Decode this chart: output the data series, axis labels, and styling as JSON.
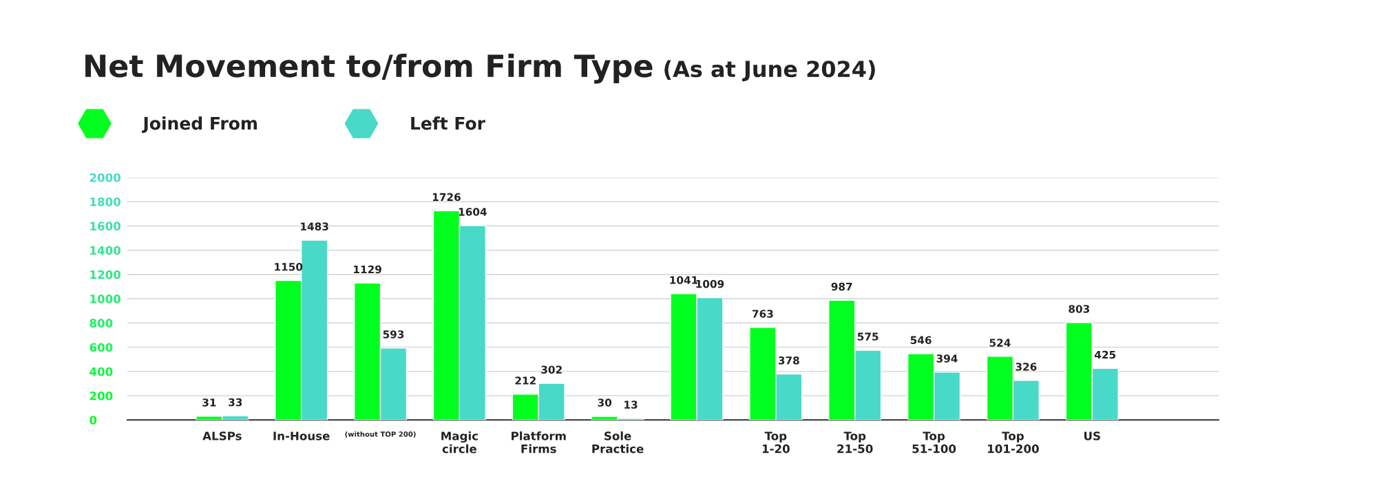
{
  "chart_data": {
    "type": "bar",
    "title": "Net Movement to/from Firm Type",
    "subtitle": "(As at June 2024)",
    "categories": [
      "ALSPs",
      "In-House",
      "(without TOP 200)",
      "Magic\ncircle",
      "Platform\nFirms",
      "Sole\nPractice",
      null,
      "Top\n1-20",
      "Top\n21-50",
      "Top\n51-100",
      "Top\n101-200",
      "US"
    ],
    "series": [
      {
        "name": "Joined From",
        "color": "#00ff1e",
        "values": [
          31,
          1150,
          1129,
          1726,
          212,
          30,
          1041,
          763,
          987,
          546,
          524,
          803
        ]
      },
      {
        "name": "Left For",
        "color": "#48d9c8",
        "values": [
          33,
          1483,
          593,
          1604,
          302,
          13,
          1009,
          378,
          575,
          394,
          326,
          425
        ]
      }
    ],
    "ylim": [
      0,
      2000
    ],
    "yticks": [
      0,
      200,
      400,
      600,
      800,
      1000,
      1200,
      1400,
      1600,
      1800,
      2000
    ],
    "grid": "y",
    "legend": "top left",
    "data_labels": true
  }
}
